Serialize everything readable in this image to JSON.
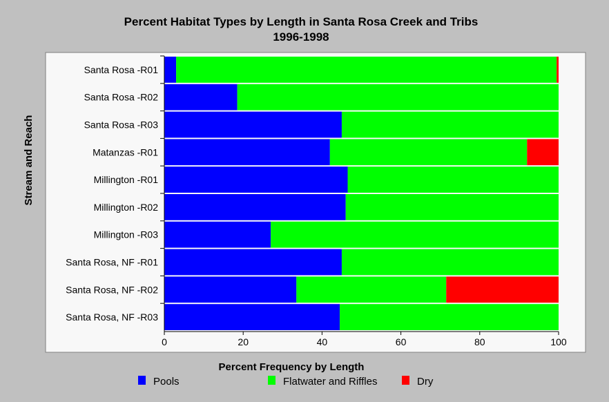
{
  "chart_data": {
    "type": "bar",
    "orientation": "horizontal",
    "stacked": true,
    "title": "Percent Habitat Types by Length in Santa Rosa Creek and Tribs",
    "subtitle": "1996-1998",
    "xlabel": "Percent Frequency by Length",
    "ylabel": "Stream and Reach",
    "xlim": [
      0,
      100
    ],
    "xticks": [
      0,
      20,
      40,
      60,
      80,
      100
    ],
    "grid": false,
    "legend_position": "bottom",
    "categories": [
      "Santa Rosa -R01",
      "Santa Rosa -R02",
      "Santa Rosa -R03",
      "Matanzas -R01",
      "Millington -R01",
      "Millington -R02",
      "Millington -R03",
      "Santa Rosa, NF -R01",
      "Santa Rosa, NF -R02",
      "Santa Rosa, NF -R03"
    ],
    "series": [
      {
        "name": "Pools",
        "color": "#0000ff",
        "values": [
          3,
          18.5,
          45,
          42,
          46.5,
          46,
          27,
          45,
          33.5,
          44.5
        ]
      },
      {
        "name": "Flatwater and Riffles",
        "color": "#00ff00",
        "values": [
          96.5,
          81.5,
          55,
          50,
          53.5,
          54,
          73,
          55,
          38,
          55.5
        ]
      },
      {
        "name": "Dry",
        "color": "#ff0000",
        "values": [
          0.5,
          0,
          0,
          8,
          0,
          0,
          0,
          0,
          28.5,
          0
        ]
      }
    ]
  }
}
